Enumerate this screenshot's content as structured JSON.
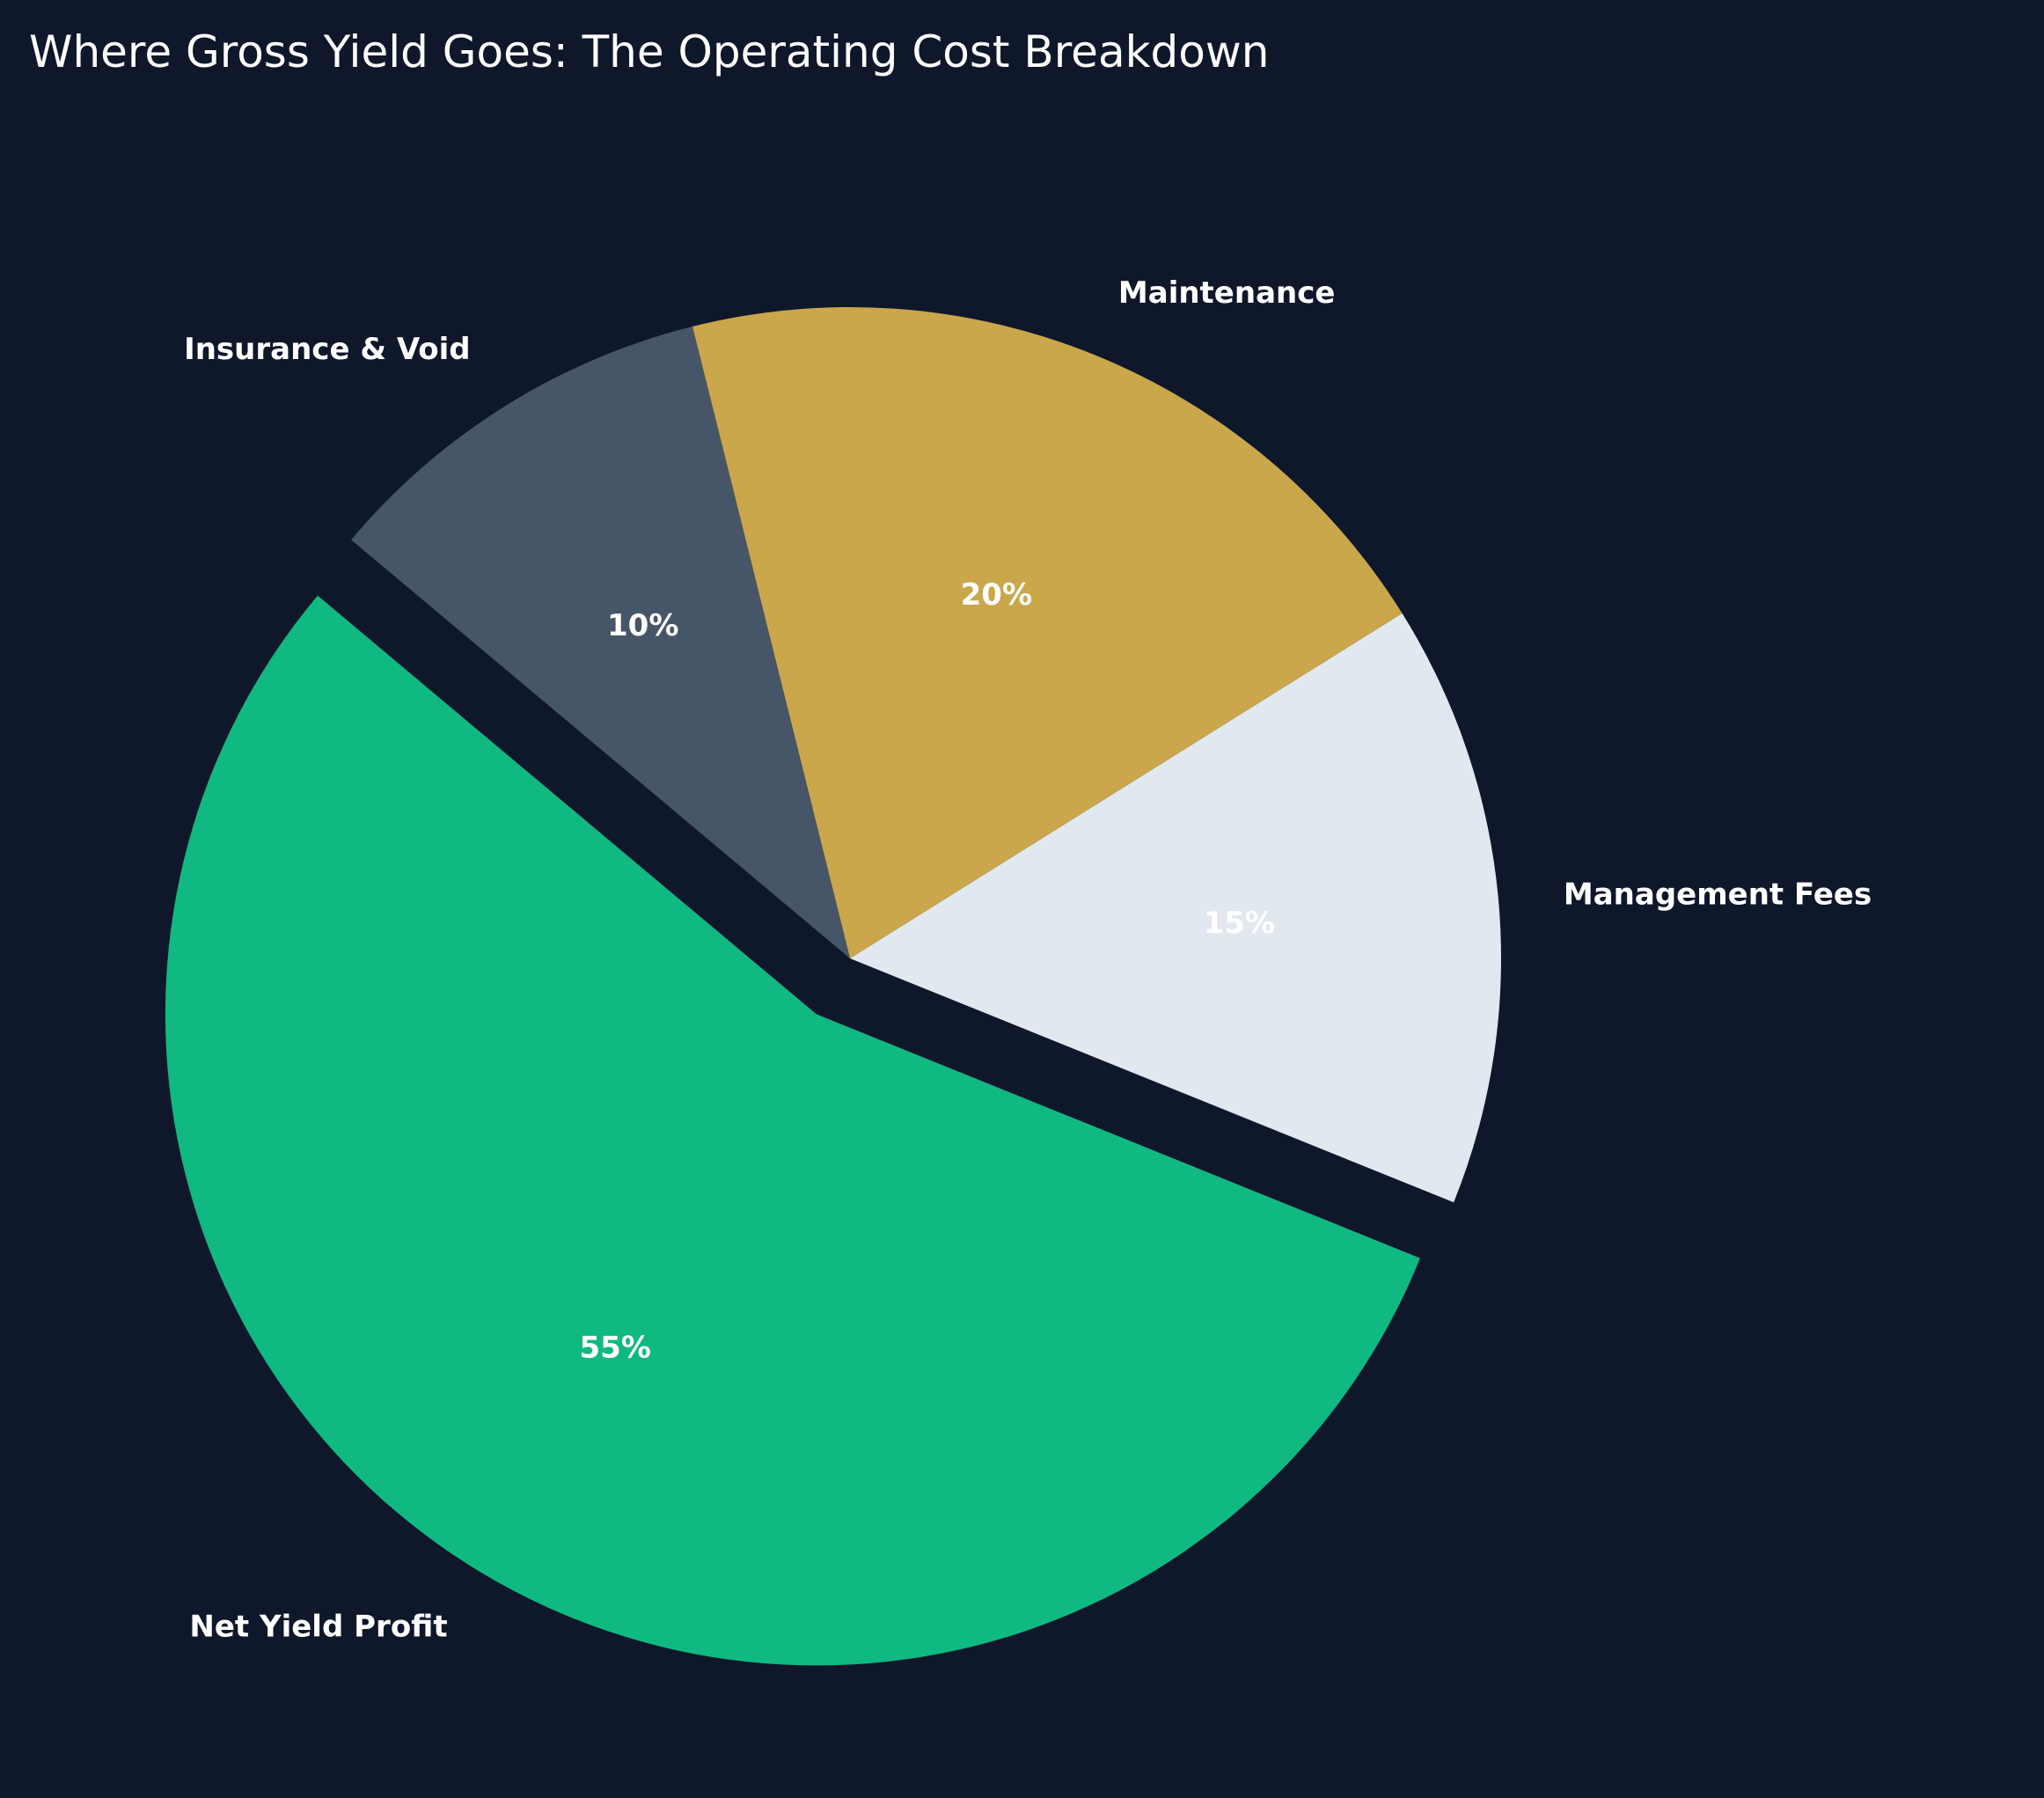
{
  "chart_data": {
    "type": "pie",
    "title": "Where Gross Yield Goes: The Operating Cost Breakdown",
    "categories": [
      "Net Yield Profit",
      "Management Fees",
      "Maintenance",
      "Insurance & Void"
    ],
    "values": [
      55,
      15,
      20,
      10
    ],
    "value_labels": [
      "55%",
      "15%",
      "20%",
      "10%"
    ],
    "colors": [
      "#10b981",
      "#e2e8f0",
      "#c9a74a",
      "#475569"
    ],
    "explode": [
      0.1,
      0,
      0,
      0
    ],
    "startangle": 140,
    "counterclockwise": true
  }
}
